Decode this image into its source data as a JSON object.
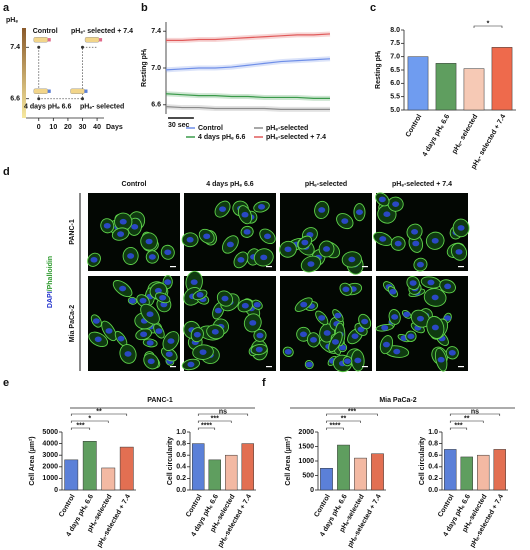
{
  "panel_labels": [
    "a",
    "b",
    "c",
    "d",
    "e",
    "f"
  ],
  "schematic": {
    "y_label": "pHₑ",
    "ylim": [
      6.3,
      7.7
    ],
    "yticks": [
      7.4,
      6.6
    ],
    "x_label": "Days",
    "xlim": [
      -6,
      42
    ],
    "xticks": [
      0,
      10,
      20,
      30,
      40
    ],
    "labels": [
      "Control",
      "4 days pHₑ 6.6",
      "pHₑ- selected",
      "pHₑ- selected + 7.4"
    ]
  },
  "chart_data": [
    {
      "type": "line",
      "y_label": "Resting pHᵢ",
      "x": [
        0,
        19,
        38,
        57,
        76,
        95,
        114,
        133,
        152,
        171,
        190
      ],
      "xlim": [
        0,
        190
      ],
      "ylim": [
        6.5,
        7.5
      ],
      "yticks": [
        6.6,
        {
          "value": 7,
          "label": "7.0"
        },
        7.4
      ],
      "scale_bar": {
        "value": 30,
        "label": "30 sec"
      },
      "series": [
        {
          "name": "Control",
          "color": "#6f8fe8",
          "values": [
            6.98,
            6.99,
            7.0,
            7.0,
            7.01,
            7.03,
            7.05,
            7.07,
            7.08,
            7.09,
            7.1
          ]
        },
        {
          "name": "4 days pHₑ 6.6",
          "color": "#3a9a4a",
          "values": [
            6.72,
            6.71,
            6.7,
            6.7,
            6.69,
            6.69,
            6.68,
            6.68,
            6.68,
            6.67,
            6.67
          ]
        },
        {
          "name": "pHₑ-selected",
          "color": "#8a8a8a",
          "values": [
            6.58,
            6.57,
            6.57,
            6.56,
            6.56,
            6.56,
            6.56,
            6.55,
            6.55,
            6.55,
            6.55
          ]
        },
        {
          "name": "pHₑ-selected + 7.4",
          "color": "#e05a5a",
          "values": [
            7.3,
            7.3,
            7.31,
            7.31,
            7.32,
            7.33,
            7.34,
            7.35,
            7.36,
            7.36,
            7.37
          ]
        }
      ]
    },
    {
      "type": "bar",
      "y_label": "Resting pHᵢ",
      "categories": [
        "Control",
        "4 days pHₑ 6.6",
        "pHₑ- selected",
        "pHₑ- selected + 7.4"
      ],
      "values": [
        7.0,
        6.75,
        6.55,
        7.35
      ],
      "colors": [
        "#6f9cf0",
        "#5f9e5f",
        "#f6c9b5",
        "#ee6a4c"
      ],
      "ylim": [
        5,
        8
      ],
      "yticks": [
        {
          "value": 5,
          "label": "5.0"
        },
        5.5,
        {
          "value": 6,
          "label": "6.0"
        },
        6.5,
        {
          "value": 7,
          "label": "7.0"
        },
        7.5,
        {
          "value": 8,
          "label": "8.0"
        }
      ],
      "significance": [
        "*"
      ]
    },
    {
      "type": "bar",
      "y_label": "Cell Area (µm²)",
      "categories": [
        "Control",
        "4 days pHₑ 6.6",
        "pHₑ-selected",
        "pHₑ-selected + 7.4"
      ],
      "values": [
        2600,
        4200,
        1900,
        3700
      ],
      "colors": [
        "#5b80d8",
        "#5f9e5f",
        "#f3b9a3",
        "#e26f52"
      ],
      "ylim": [
        0,
        5000
      ],
      "yticks": [
        0,
        1000,
        2000,
        3000,
        4000,
        5000
      ],
      "significance": [
        "***",
        "*",
        "**"
      ]
    },
    {
      "type": "bar",
      "y_label": "Cell circularity",
      "categories": [
        "Control",
        "4 days pHₑ 6.6",
        "pHₑ-selected",
        "pHₑ-selected + 7.4"
      ],
      "values": [
        0.8,
        0.52,
        0.6,
        0.8
      ],
      "colors": [
        "#5b80d8",
        "#5f9e5f",
        "#f3b9a3",
        "#e26f52"
      ],
      "ylim": [
        0,
        1
      ],
      "yticks": [
        {
          "value": 0,
          "label": "0.0"
        },
        0.2,
        0.4,
        0.6,
        0.8,
        {
          "value": 1,
          "label": "1.0"
        }
      ],
      "significance": [
        "****",
        "***",
        "ns"
      ]
    },
    {
      "type": "bar",
      "y_label": "Cell Area (µm²)",
      "categories": [
        "Control",
        "4 days pHₑ 6.6",
        "pHₑ-selected",
        "pHₑ-selected + 7.4"
      ],
      "values": [
        750,
        1550,
        1100,
        1250
      ],
      "colors": [
        "#5b80d8",
        "#5f9e5f",
        "#f3b9a3",
        "#e26f52"
      ],
      "ylim": [
        0,
        2000
      ],
      "yticks": [
        0,
        500,
        1000,
        1500,
        2000
      ],
      "significance": [
        "****",
        "**",
        "***"
      ]
    },
    {
      "type": "bar",
      "y_label": "Cell circularity",
      "categories": [
        "Control",
        "4 days pHₑ 6.6",
        "pHₑ-selected",
        "pHₑ-selected + 7.4"
      ],
      "values": [
        0.7,
        0.57,
        0.6,
        0.7
      ],
      "colors": [
        "#5b80d8",
        "#5f9e5f",
        "#f3b9a3",
        "#e26f52"
      ],
      "ylim": [
        0,
        1
      ],
      "yticks": [
        {
          "value": 0,
          "label": "0.0"
        },
        0.2,
        0.4,
        0.6,
        0.8,
        {
          "value": 1,
          "label": "1.0"
        }
      ],
      "significance": [
        "***",
        "**",
        "ns"
      ]
    }
  ],
  "micrographs": {
    "columns": [
      "Control",
      "4 days pHₑ 6.6",
      "pHₑ-selected",
      "pHₑ-selected + 7.4"
    ],
    "rows": [
      "PANC-1",
      "Mia PaCa-2"
    ],
    "stain_label": [
      "DAPI",
      "/Phalloidin"
    ]
  },
  "group_titles": [
    "PANC-1",
    "Mia PaCa-2"
  ]
}
